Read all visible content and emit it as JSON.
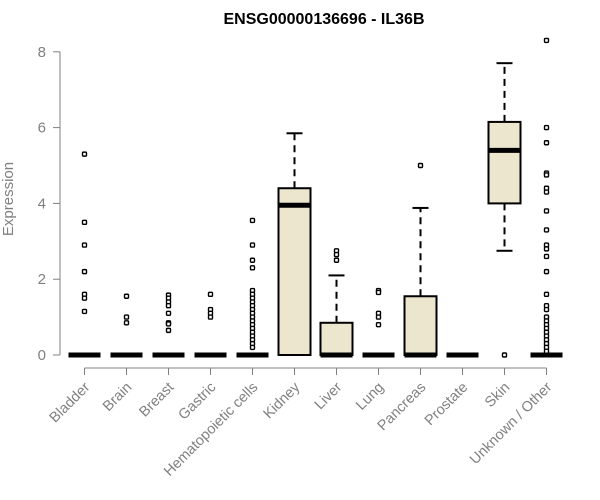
{
  "chart_data": {
    "type": "box",
    "title": "ENSG00000136696 - IL36B",
    "ylabel": "Expression",
    "xlabel": "",
    "ylim": [
      0,
      8
    ],
    "yticks": [
      0,
      2,
      4,
      6,
      8
    ],
    "grid": false,
    "legend": "none",
    "colors": {
      "box_fill": "#ECE6CF",
      "line": "#000000",
      "axis": "#808080"
    },
    "categories": [
      "Bladder",
      "Brain",
      "Breast",
      "Gastric",
      "Hematopoietic cells",
      "Kidney",
      "Liver",
      "Lung",
      "Pancreas",
      "Prostate",
      "Skin",
      "Unknown / Other"
    ],
    "boxes": [
      {
        "category": "Bladder",
        "min": 0,
        "q1": 0,
        "median": 0,
        "q3": 0,
        "max": 0,
        "outliers": [
          5.3,
          3.5,
          2.9,
          2.2,
          1.6,
          1.5,
          1.15
        ]
      },
      {
        "category": "Brain",
        "min": 0,
        "q1": 0,
        "median": 0,
        "q3": 0,
        "max": 0,
        "outliers": [
          1.55,
          1.0,
          0.85
        ]
      },
      {
        "category": "Breast",
        "min": 0,
        "q1": 0,
        "median": 0,
        "q3": 0,
        "max": 0,
        "outliers": [
          1.58,
          1.5,
          1.4,
          1.3,
          1.1,
          0.85,
          0.82,
          0.65
        ]
      },
      {
        "category": "Gastric",
        "min": 0,
        "q1": 0,
        "median": 0,
        "q3": 0,
        "max": 0,
        "outliers": [
          1.6,
          1.2,
          1.1,
          1.0
        ]
      },
      {
        "category": "Hematopoietic cells",
        "min": 0,
        "q1": 0,
        "median": 0,
        "q3": 0,
        "max": 0,
        "outliers": [
          3.55,
          2.9,
          2.5,
          2.3,
          1.7,
          1.6,
          1.5,
          1.4,
          1.3,
          1.2,
          1.1,
          1.0,
          0.9,
          0.8,
          0.7,
          0.6,
          0.5,
          0.4,
          0.3,
          0.2
        ]
      },
      {
        "category": "Kidney",
        "min": 0,
        "q1": 0,
        "median": 3.95,
        "q3": 4.4,
        "max": 5.85,
        "outliers": []
      },
      {
        "category": "Liver",
        "min": 0,
        "q1": 0,
        "median": 0,
        "q3": 0.85,
        "max": 2.1,
        "outliers": [
          2.75,
          2.65,
          2.5
        ]
      },
      {
        "category": "Lung",
        "min": 0,
        "q1": 0,
        "median": 0,
        "q3": 0,
        "max": 0,
        "outliers": [
          1.7,
          1.65,
          1.1,
          1.0,
          0.8
        ]
      },
      {
        "category": "Pancreas",
        "min": 0,
        "q1": 0,
        "median": 0,
        "q3": 1.55,
        "max": 3.88,
        "outliers": [
          5.0
        ]
      },
      {
        "category": "Prostate",
        "min": 0,
        "q1": 0,
        "median": 0,
        "q3": 0,
        "max": 0,
        "outliers": []
      },
      {
        "category": "Skin",
        "min": 2.75,
        "q1": 4.0,
        "median": 5.4,
        "q3": 6.15,
        "max": 7.7,
        "outliers": [
          0
        ]
      },
      {
        "category": "Unknown / Other",
        "min": 0,
        "q1": 0,
        "median": 0,
        "q3": 0,
        "max": 0,
        "outliers": [
          8.3,
          6.0,
          5.6,
          4.8,
          4.75,
          4.4,
          4.3,
          3.8,
          3.3,
          2.9,
          2.8,
          2.6,
          2.2,
          1.6,
          1.3,
          1.2,
          1.0,
          0.9,
          0.8,
          0.7,
          0.6,
          0.5,
          0.4,
          0.3,
          0.2,
          0.1
        ]
      }
    ]
  }
}
